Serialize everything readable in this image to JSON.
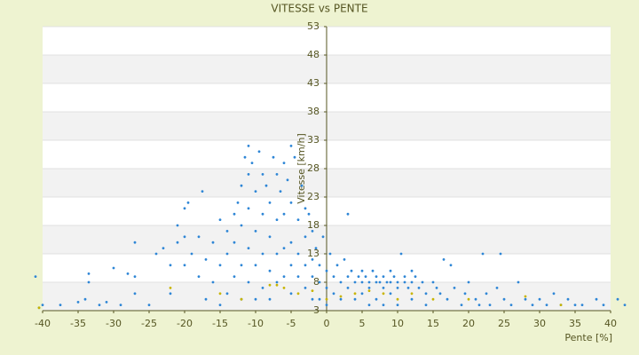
{
  "chart_data": {
    "type": "scatter",
    "title": "VITESSE vs PENTE",
    "xlabel": "Pente [%]",
    "ylabel": "Vitesse [km/h]",
    "xlim": [
      -40,
      40
    ],
    "xticks": [
      -40,
      -35,
      -30,
      -25,
      -20,
      -15,
      -10,
      -5,
      0,
      5,
      10,
      15,
      20,
      25,
      30,
      35,
      40
    ],
    "ylim": [
      3,
      53
    ],
    "yticks": [
      3,
      8,
      13,
      18,
      23,
      28,
      33,
      38,
      43,
      48,
      53
    ],
    "grid": true,
    "band_colors": [
      "#f2f2f2",
      "#ffffff"
    ],
    "series": [
      {
        "color": "#2e86d6",
        "x": [
          -41,
          -40.5,
          -40,
          -37.5,
          -35,
          -34,
          -33.5,
          -33.5,
          -32,
          -31,
          -30,
          -29,
          -28,
          -27,
          -27,
          -27,
          -25,
          -24,
          -23,
          -22,
          -22,
          -21,
          -21,
          -20,
          -20,
          -20,
          -19.5,
          -19,
          -18,
          -18,
          -17.5,
          -17,
          -17,
          -16,
          -16,
          -15,
          -15,
          -15,
          -14,
          -14,
          -14,
          -13,
          -13,
          -13,
          -12.5,
          -12,
          -12,
          -12,
          -12,
          -11.5,
          -11,
          -11,
          -11,
          -11,
          -11,
          -10.5,
          -10,
          -10,
          -10,
          -10,
          -9.5,
          -9,
          -9,
          -9,
          -9,
          -8.5,
          -8,
          -8,
          -8,
          -8,
          -7.5,
          -7,
          -7,
          -7,
          -7,
          -6.5,
          -6,
          -6,
          -6,
          -6,
          -5.5,
          -5,
          -5,
          -5,
          -5,
          -5,
          -4.5,
          -4,
          -4,
          -4,
          -3.5,
          -3,
          -3,
          -3,
          -3,
          -2.5,
          -2,
          -2,
          -2,
          -2,
          -1.5,
          -1,
          -1,
          -1,
          -0.5,
          0,
          0,
          0,
          0.5,
          1,
          1,
          1.5,
          2,
          2,
          2.5,
          3,
          3,
          3,
          3.5,
          4,
          4,
          4.5,
          5,
          5,
          5,
          5.5,
          6,
          6,
          6,
          6.5,
          7,
          7,
          7,
          7.5,
          8,
          8,
          8,
          8.5,
          9,
          9,
          9,
          9.5,
          10,
          10,
          10,
          10.5,
          11,
          11,
          11.5,
          12,
          12,
          12,
          12.5,
          13,
          13.5,
          14,
          14,
          15,
          15.5,
          16,
          16.5,
          17,
          17.5,
          18,
          19,
          19.5,
          20,
          21,
          21.5,
          22,
          22.5,
          23,
          24,
          24.5,
          25,
          26,
          27,
          28,
          29,
          30,
          31,
          32,
          33,
          34,
          35,
          36,
          38,
          39,
          41,
          42
        ],
        "values": [
          9,
          3.5,
          4,
          4,
          4.5,
          5,
          9.5,
          8,
          4,
          4.5,
          10.5,
          4,
          9.5,
          9,
          15,
          6,
          4,
          13,
          14,
          6,
          11,
          18,
          15,
          21,
          11,
          16,
          22,
          13,
          9,
          16,
          24,
          12,
          5,
          15,
          8,
          19,
          11,
          4,
          17,
          13,
          6,
          20,
          15,
          9,
          22,
          25,
          18,
          11,
          5,
          30,
          32,
          27,
          21,
          14,
          8,
          29,
          24,
          17,
          11,
          5,
          31,
          27,
          20,
          13,
          7,
          25,
          22,
          16,
          10,
          5,
          30,
          27,
          19,
          13,
          8,
          24,
          29,
          20,
          14,
          9,
          26,
          32,
          22,
          15,
          11,
          6,
          30,
          19,
          13,
          9,
          25,
          21,
          16,
          11,
          7,
          20,
          17,
          12,
          9,
          5,
          14,
          11,
          8,
          5,
          16,
          10,
          7,
          4,
          13,
          9,
          6,
          11,
          8,
          5,
          12,
          20,
          9,
          7,
          10,
          8,
          5,
          9,
          10,
          8,
          6,
          9,
          8,
          7,
          4,
          10,
          9,
          8,
          5,
          8,
          9,
          7,
          4,
          8,
          10,
          8,
          6,
          9,
          8,
          7,
          4,
          13,
          9,
          8,
          7,
          10,
          8,
          5,
          9,
          7,
          8,
          6,
          4,
          8,
          7,
          6,
          12,
          5,
          11,
          7,
          4,
          6,
          8,
          5,
          4,
          13,
          6,
          4,
          7,
          13,
          5,
          4,
          8,
          5,
          4,
          5,
          4,
          6,
          4,
          5,
          4,
          4,
          5,
          4,
          5,
          4
        ]
      },
      {
        "color": "#c8b400",
        "x": [
          -40.5,
          -22,
          -15,
          -12,
          -8,
          -7,
          -6,
          -4,
          -2,
          0,
          2,
          4,
          6,
          8,
          10,
          12,
          15,
          20,
          28,
          33
        ],
        "values": [
          3.5,
          7,
          6,
          5,
          7.5,
          7.5,
          7,
          6,
          6.5,
          5,
          5.5,
          6,
          6.5,
          6,
          5,
          6,
          5,
          5,
          5.5,
          4
        ]
      }
    ]
  }
}
